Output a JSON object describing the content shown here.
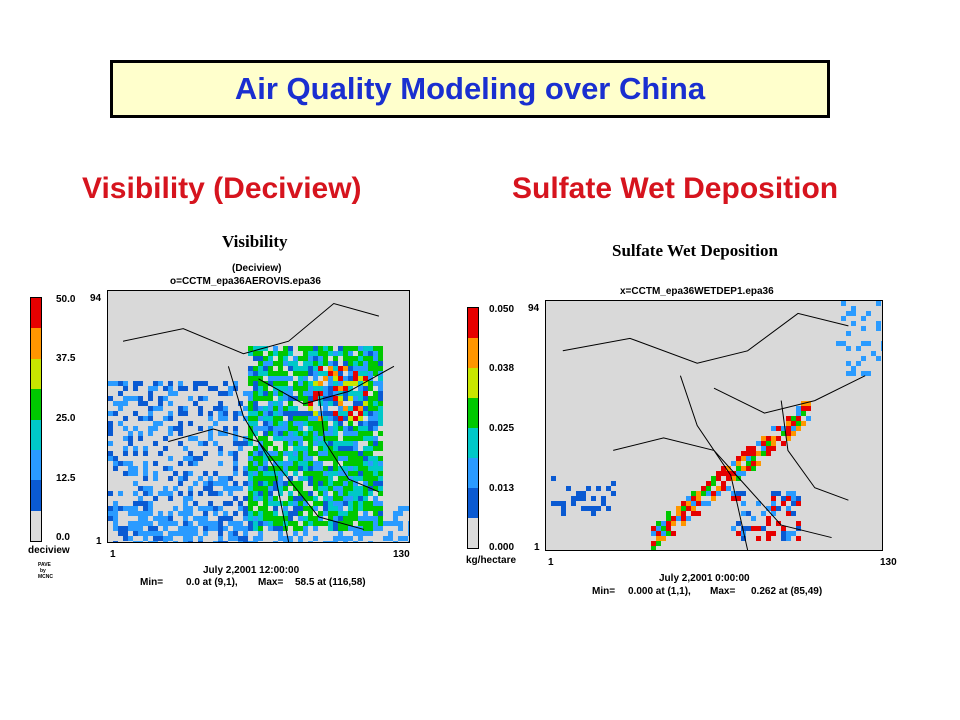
{
  "title": "Air Quality Modeling over China",
  "headings": {
    "left": "Visibility (Deciview)",
    "right": "Sulfate Wet Deposition"
  },
  "colors": {
    "title_text": "#1a2fd0",
    "title_bg": "#ffffcc",
    "heading_text": "#d6141e",
    "scale": [
      "#dcdcdc",
      "#0a5ad2",
      "#2a9bff",
      "#00c8c8",
      "#00c800",
      "#c8e600",
      "#ff9600",
      "#e60000"
    ]
  },
  "visibility": {
    "title": "Visibility",
    "subtitle": "(Deciview)",
    "file": "o=CCTM_epa36AEROVIS.epa36",
    "scale_labels": [
      "50.0",
      "37.5",
      "25.0",
      "12.5",
      "0.0"
    ],
    "unit": "deciview",
    "y_max": "94",
    "y_min": "1",
    "x_min": "1",
    "x_max": "130",
    "date": "July 2,2001 12:00:00",
    "min_label": "Min=",
    "min_value": "0.0 at (9,1),",
    "max_label": "Max=",
    "max_value": "58.5 at (116,58)",
    "credit": [
      "PAVE",
      "by",
      "MCNC"
    ]
  },
  "sulfate": {
    "title": "Sulfate Wet Deposition",
    "file": "x=CCTM_epa36WETDEP1.epa36",
    "scale_labels": [
      "0.050",
      "0.038",
      "0.025",
      "0.013",
      "0.000"
    ],
    "unit": "kg/hectare",
    "y_max": "94",
    "y_min": "1",
    "x_min": "1",
    "x_max": "130",
    "date": "July 2,2001 0:00:00",
    "min_label": "Min=",
    "min_value": "0.000 at (1,1),",
    "max_label": "Max=",
    "max_value": "0.262 at (85,49)"
  }
}
